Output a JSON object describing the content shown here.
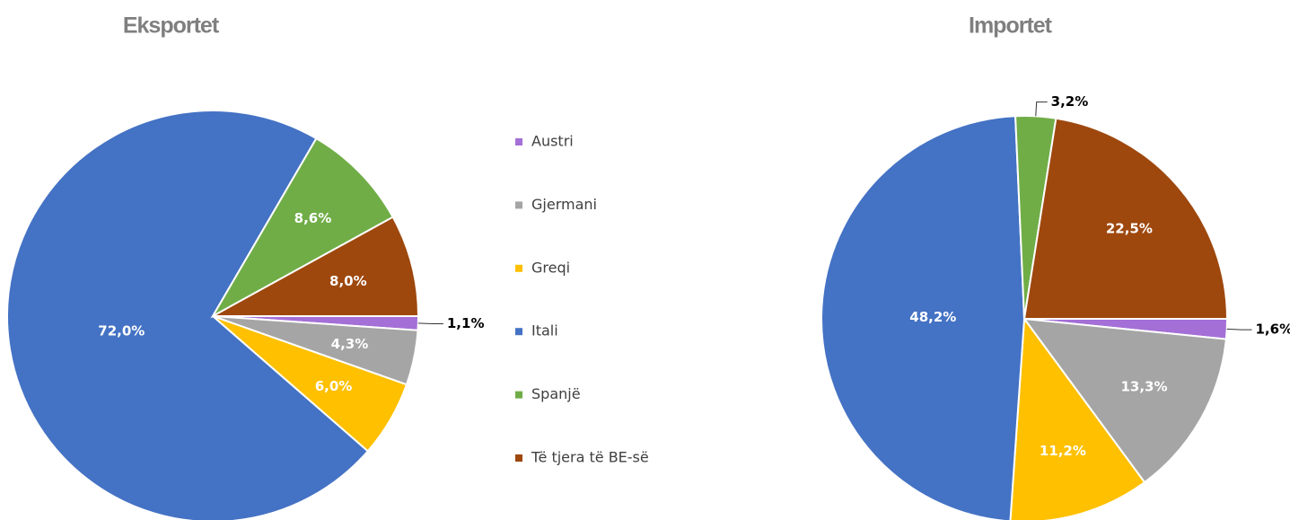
{
  "chart_data": [
    {
      "type": "pie",
      "title": "Eksportet",
      "categories": [
        "Austri",
        "Gjermani",
        "Greqi",
        "Itali",
        "Spanjë",
        "Të tjera të BE-së"
      ],
      "values": [
        1.1,
        4.3,
        6.0,
        72.0,
        8.6,
        8.0
      ],
      "value_labels": [
        "1,1%",
        "4,3%",
        "6,0%",
        "72,0%",
        "8,6%",
        "8,0%"
      ],
      "colors": [
        "#a46fd6",
        "#a5a5a5",
        "#ffc000",
        "#4472c4",
        "#70ad47",
        "#9e480e"
      ]
    },
    {
      "type": "pie",
      "title": "Importet",
      "categories": [
        "Austri",
        "Gjermani",
        "Greqi",
        "Itali",
        "Spanjë",
        "Të tjera të BE-së"
      ],
      "values": [
        1.6,
        13.3,
        11.2,
        48.2,
        3.2,
        22.5
      ],
      "value_labels": [
        "1,6%",
        "13,3%",
        "11,2%",
        "48,2%",
        "3,2%",
        "22,5%"
      ],
      "colors": [
        "#a46fd6",
        "#a5a5a5",
        "#ffc000",
        "#4472c4",
        "#70ad47",
        "#9e480e"
      ]
    }
  ]
}
